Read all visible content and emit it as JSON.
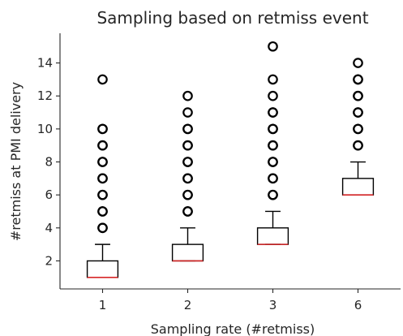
{
  "chart_data": {
    "type": "box",
    "title": "Sampling based on retmiss event",
    "xlabel": "Sampling rate (#retmiss)",
    "ylabel": "#retmiss at PMI delivery",
    "ylim": [
      0.3,
      15.8
    ],
    "yticks": [
      2,
      4,
      6,
      8,
      10,
      12,
      14
    ],
    "grid": false,
    "categories": [
      "1",
      "2",
      "3",
      "6"
    ],
    "boxes": [
      {
        "category": "1",
        "whisker_low": 1,
        "q1": 1,
        "median": 1,
        "q3": 2,
        "whisker_high": 3,
        "outliers": [
          4,
          4,
          5,
          5,
          6,
          6,
          7,
          7,
          8,
          8,
          9,
          9,
          10,
          10,
          13
        ]
      },
      {
        "category": "2",
        "whisker_low": 2,
        "q1": 2,
        "median": 2,
        "q3": 3,
        "whisker_high": 4,
        "outliers": [
          5,
          5,
          6,
          6,
          7,
          7,
          8,
          8,
          9,
          9,
          10,
          10,
          11,
          12
        ]
      },
      {
        "category": "3",
        "whisker_low": 3,
        "q1": 3,
        "median": 3,
        "q3": 4,
        "whisker_high": 5,
        "outliers": [
          6,
          6,
          7,
          7,
          8,
          8,
          9,
          9,
          10,
          10,
          11,
          11,
          12,
          13,
          15
        ]
      },
      {
        "category": "6",
        "whisker_low": 6,
        "q1": 6,
        "median": 6,
        "q3": 7,
        "whisker_high": 8,
        "outliers": [
          9,
          9,
          10,
          10,
          11,
          11,
          12,
          12,
          13,
          13,
          14
        ]
      }
    ]
  }
}
